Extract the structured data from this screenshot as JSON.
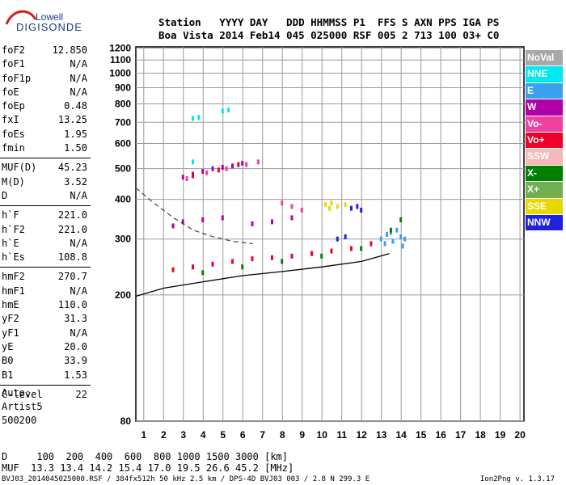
{
  "logo": {
    "line1": "Lowell",
    "line2": "DIGISONDE"
  },
  "header": {
    "line1": "Station   YYYY DAY   DDD HHMMSS P1  FFS S AXN PPS IGA PS",
    "line2": "Boa Vista 2014 Feb14 045 025000 RSF 005 2 713 100 03+ C0"
  },
  "params": [
    {
      "group": [
        {
          "key": "foF2",
          "value": "12.850"
        },
        {
          "key": "foF1",
          "value": "N/A"
        },
        {
          "key": "foF1p",
          "value": "N/A"
        },
        {
          "key": "foE",
          "value": "N/A"
        },
        {
          "key": "foEp",
          "value": "0.48"
        },
        {
          "key": "fxI",
          "value": "13.25"
        },
        {
          "key": "foEs",
          "value": "1.95"
        },
        {
          "key": "fmin",
          "value": "1.50"
        }
      ]
    },
    {
      "group": [
        {
          "key": "MUF(D)",
          "value": "45.23"
        },
        {
          "key": "M(D)",
          "value": "3.52"
        },
        {
          "key": "D",
          "value": "N/A"
        }
      ]
    },
    {
      "group": [
        {
          "key": "h`F",
          "value": "221.0"
        },
        {
          "key": "h`F2",
          "value": "221.0"
        },
        {
          "key": "h`E",
          "value": "N/A"
        },
        {
          "key": "h`Es",
          "value": "108.8"
        }
      ]
    },
    {
      "group": [
        {
          "key": "hmF2",
          "value": "270.7"
        },
        {
          "key": "hmF1",
          "value": "N/A"
        },
        {
          "key": "hmE",
          "value": "110.0"
        },
        {
          "key": "yF2",
          "value": "31.3"
        },
        {
          "key": "yF1",
          "value": "N/A"
        },
        {
          "key": "yE",
          "value": "20.0"
        },
        {
          "key": "B0",
          "value": "33.9"
        },
        {
          "key": "B1",
          "value": "1.53"
        }
      ]
    },
    {
      "group": [
        {
          "key": "C-level",
          "value": "22"
        }
      ]
    }
  ],
  "auto": {
    "line1": "Auto:",
    "line2": "Artist5",
    "line3": "500200"
  },
  "footer": {
    "line1": "D     100  200  400  600  800 1000 1500 3000 [km]",
    "line2": "MUF  13.3 13.4 14.2 15.4 17.0 19.5 26.6 45.2 [MHz]",
    "line3": "BVJ03_2014045025000.RSF / 384fx512h 50 kHz 2.5 km / DPS-4D BVJ03 003 / 2.8 N 299.3 E",
    "version": "Ion2Png v. 1.3.17"
  },
  "legend": [
    {
      "label": "NoVal",
      "color": "#a8a8a8"
    },
    {
      "label": "NNE",
      "color": "#00e8f0"
    },
    {
      "label": "E",
      "color": "#3aa0f0"
    },
    {
      "label": "W",
      "color": "#b000a8"
    },
    {
      "label": "Vo-",
      "color": "#f040a0"
    },
    {
      "label": "Vo+",
      "color": "#f00028"
    },
    {
      "label": "SSW",
      "color": "#f8b8b8"
    },
    {
      "label": "X-",
      "color": "#008000"
    },
    {
      "label": "X+",
      "color": "#70b050"
    },
    {
      "label": "SSE",
      "color": "#e8d800"
    },
    {
      "label": "NNW",
      "color": "#2020e0"
    }
  ],
  "chart_data": {
    "type": "scatter",
    "title": "",
    "xlabel": "",
    "ylabel": "",
    "xlim": [
      0.6,
      20.2
    ],
    "ylim": [
      80,
      1210
    ],
    "y_scale": "log",
    "x_ticks": [
      1,
      2,
      3,
      4,
      5,
      6,
      7,
      8,
      9,
      10,
      11,
      12,
      13,
      14,
      15,
      16,
      17,
      18,
      19,
      20
    ],
    "y_ticks": [
      80,
      200,
      300,
      400,
      500,
      600,
      700,
      800,
      900,
      1000,
      1100,
      1200
    ],
    "grid": true,
    "series": [
      {
        "color": "#3aa0f0",
        "points": [
          [
            13.0,
            300
          ],
          [
            13.3,
            310
          ],
          [
            13.6,
            295
          ],
          [
            14.0,
            305
          ],
          [
            14.2,
            300
          ],
          [
            13.8,
            320
          ],
          [
            13.2,
            290
          ],
          [
            14.1,
            285
          ],
          [
            13.5,
            315
          ]
        ]
      },
      {
        "color": "#b000a8",
        "points": [
          [
            3.0,
            470
          ],
          [
            3.5,
            480
          ],
          [
            4.0,
            490
          ],
          [
            4.5,
            500
          ],
          [
            5.0,
            505
          ],
          [
            5.5,
            510
          ],
          [
            6.0,
            520
          ],
          [
            2.5,
            330
          ],
          [
            3.0,
            340
          ],
          [
            4.0,
            345
          ],
          [
            5.0,
            350
          ],
          [
            6.5,
            335
          ],
          [
            7.5,
            340
          ],
          [
            8.5,
            350
          ]
        ]
      },
      {
        "color": "#f040a0",
        "points": [
          [
            3.2,
            465
          ],
          [
            4.2,
            485
          ],
          [
            5.2,
            500
          ],
          [
            6.2,
            515
          ],
          [
            6.8,
            525
          ],
          [
            8.0,
            390
          ],
          [
            8.5,
            380
          ],
          [
            9.0,
            370
          ]
        ]
      },
      {
        "color": "#f00028",
        "points": [
          [
            3.5,
            475
          ],
          [
            4.8,
            495
          ],
          [
            5.8,
            515
          ],
          [
            2.5,
            240
          ],
          [
            3.5,
            245
          ],
          [
            4.5,
            250
          ],
          [
            5.5,
            255
          ],
          [
            6.5,
            260
          ],
          [
            7.5,
            262
          ],
          [
            8.5,
            265
          ],
          [
            9.5,
            270
          ],
          [
            10.5,
            275
          ],
          [
            11.5,
            280
          ],
          [
            12.5,
            290
          ]
        ]
      },
      {
        "color": "#008000",
        "points": [
          [
            4.0,
            235
          ],
          [
            6.0,
            245
          ],
          [
            8.0,
            255
          ],
          [
            10.0,
            265
          ],
          [
            12.0,
            280
          ],
          [
            13.5,
            320
          ],
          [
            14.0,
            345
          ]
        ]
      },
      {
        "color": "#e8d800",
        "points": [
          [
            10.2,
            385
          ],
          [
            10.5,
            390
          ],
          [
            10.8,
            380
          ],
          [
            11.2,
            385
          ],
          [
            10.4,
            375
          ]
        ]
      },
      {
        "color": "#2020e0",
        "points": [
          [
            11.5,
            375
          ],
          [
            12.0,
            370
          ],
          [
            11.8,
            380
          ],
          [
            10.8,
            300
          ],
          [
            11.2,
            305
          ]
        ]
      },
      {
        "color": "#00e8f0",
        "points": [
          [
            3.5,
            525
          ],
          [
            5.0,
            760
          ],
          [
            5.3,
            765
          ],
          [
            3.5,
            720
          ],
          [
            3.8,
            725
          ]
        ]
      }
    ],
    "curves": [
      {
        "name": "",
        "points": [
          [
            0.6,
            198
          ],
          [
            2,
            210
          ],
          [
            4,
            220
          ],
          [
            6,
            230
          ],
          [
            8,
            237
          ],
          [
            10,
            245
          ],
          [
            12,
            255
          ],
          [
            13.4,
            270
          ]
        ]
      },
      {
        "name": "",
        "points": [
          [
            0.6,
            435
          ],
          [
            1.5,
            390
          ],
          [
            2.5,
            350
          ],
          [
            3.5,
            320
          ],
          [
            4.5,
            305
          ],
          [
            5.5,
            295
          ],
          [
            6.5,
            290
          ]
        ]
      }
    ]
  }
}
